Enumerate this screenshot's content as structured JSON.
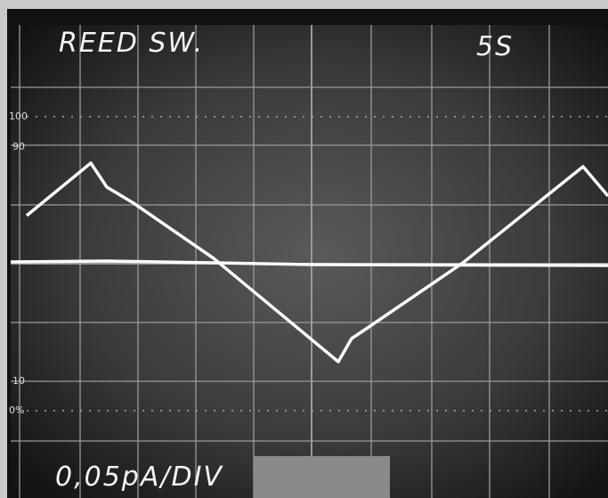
{
  "screen": {
    "title": "REED SW.",
    "timebase": "5S",
    "scale_labels": [
      "100",
      "90",
      "10",
      "0%"
    ],
    "sensitivity": "0,05pA/DIV"
  }
}
